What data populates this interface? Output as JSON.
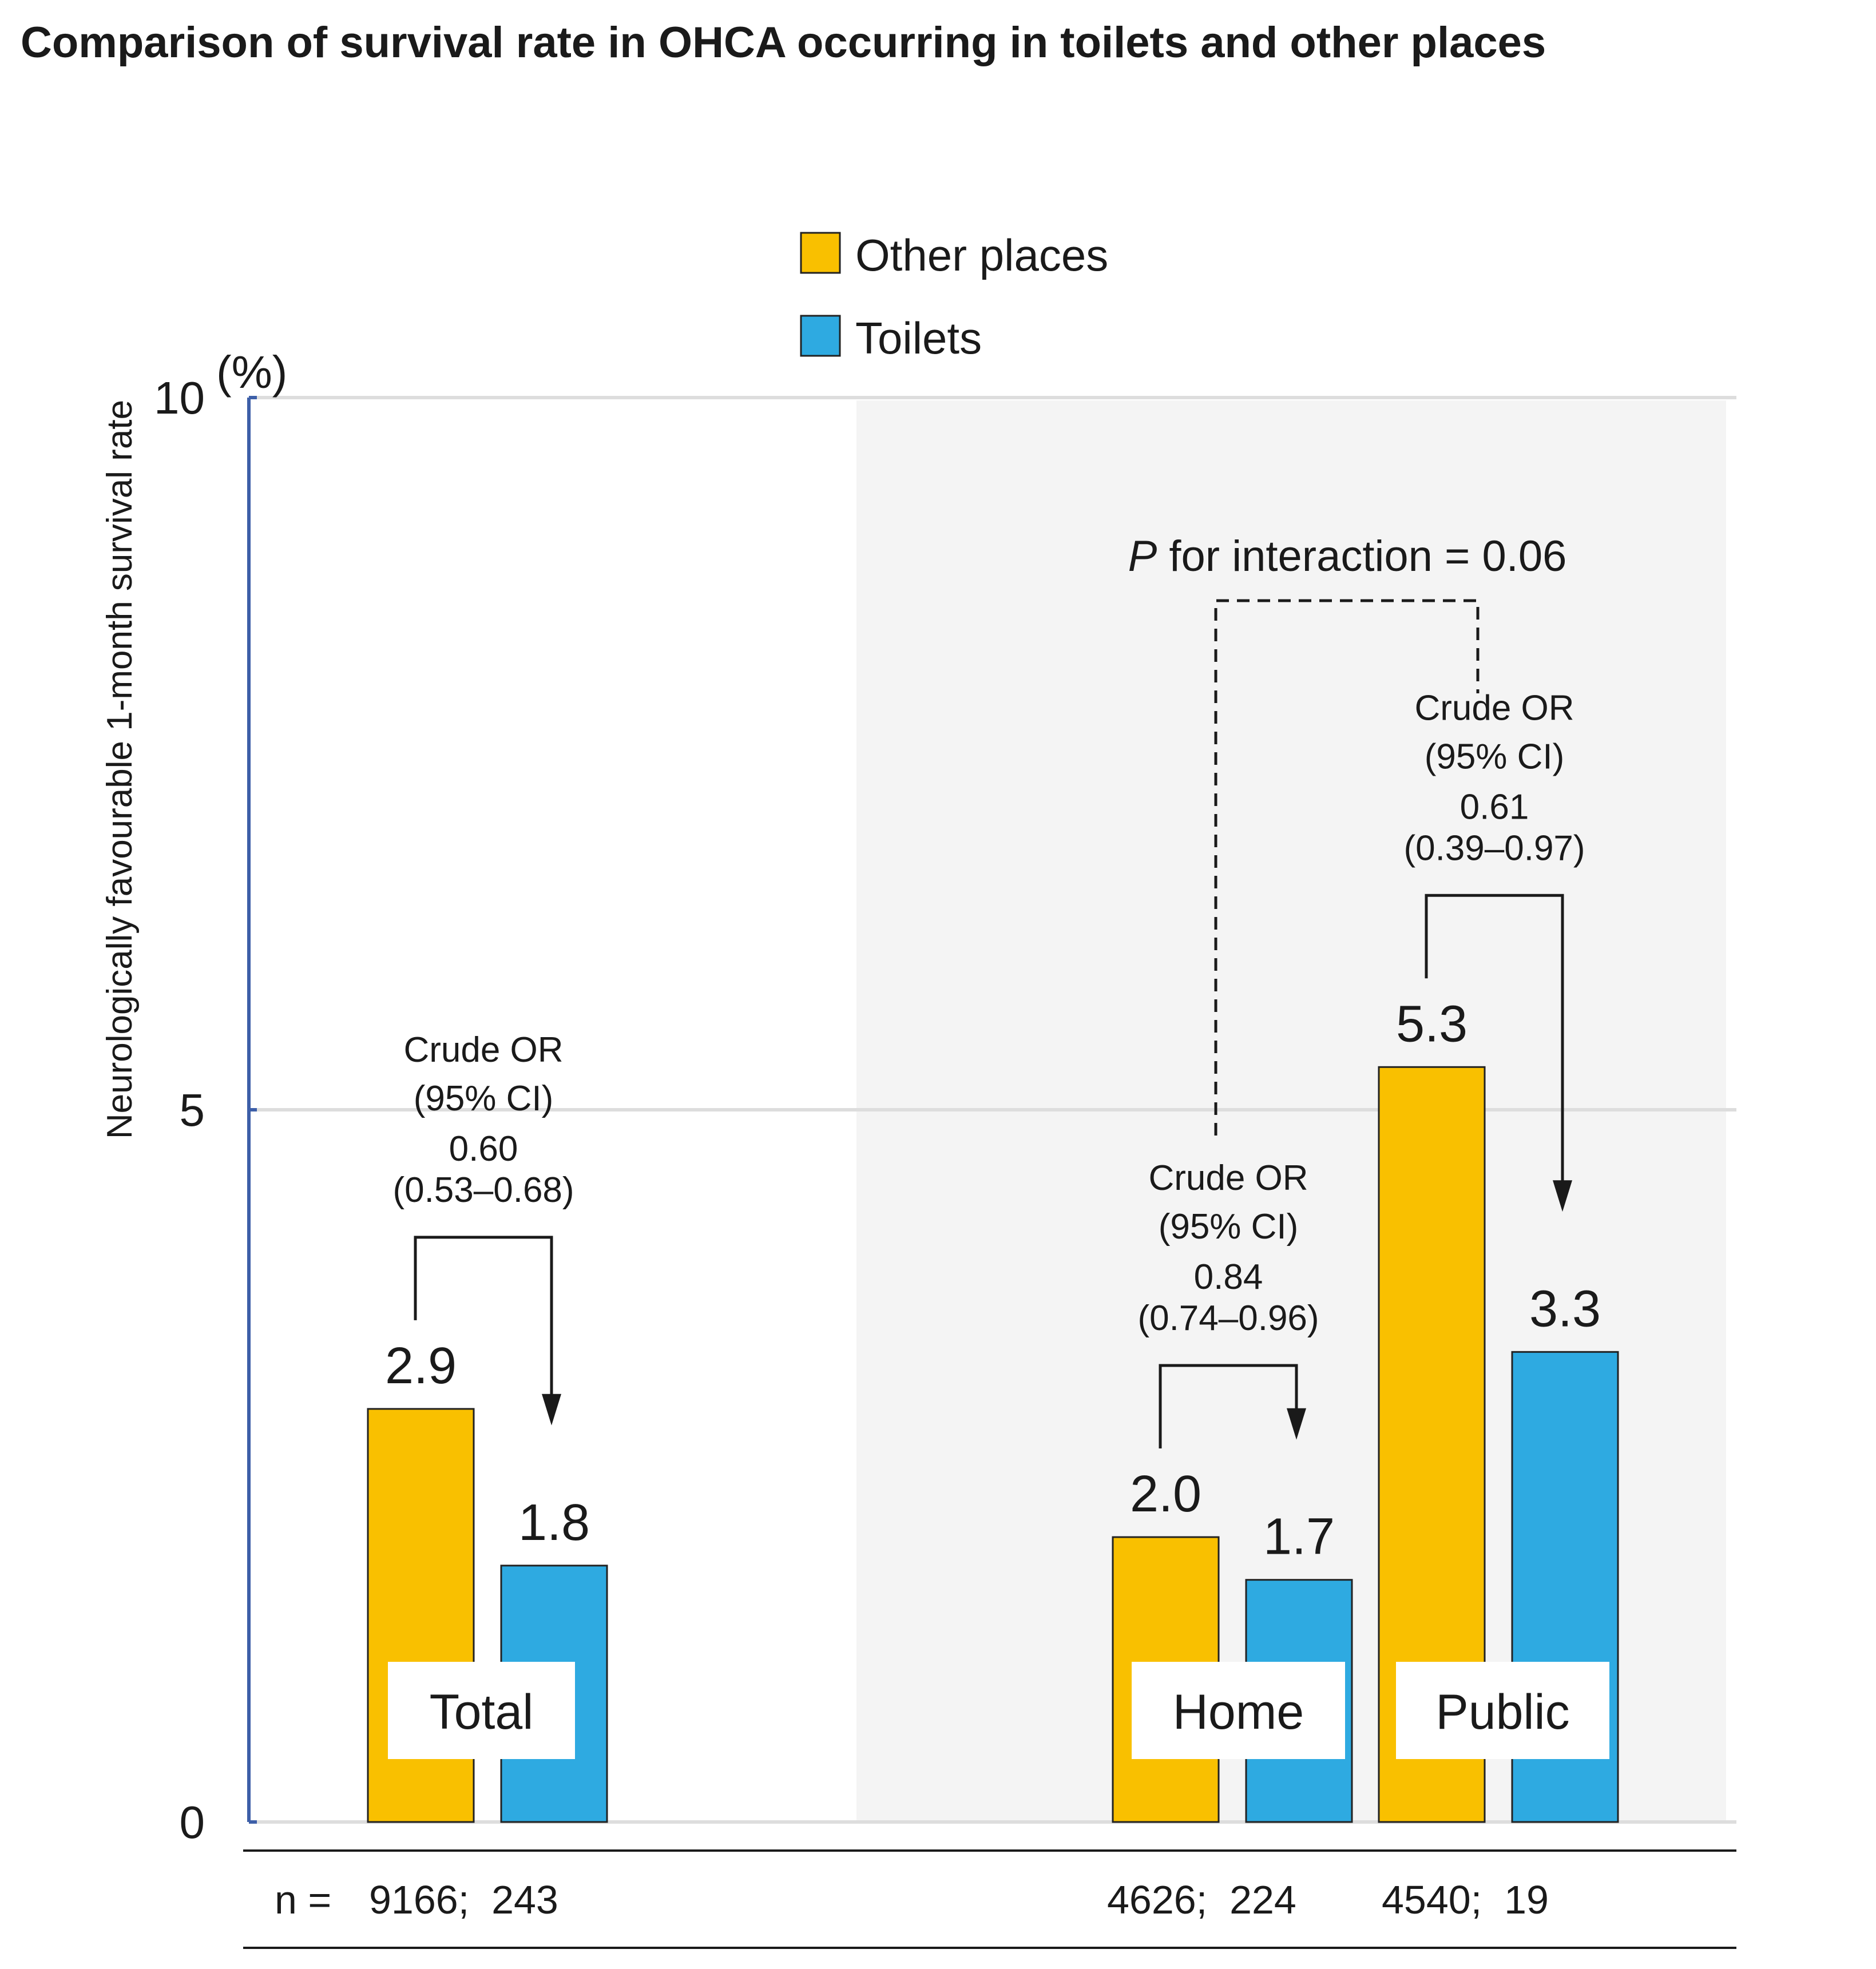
{
  "title": "Comparison of survival rate in OHCA occurring in toilets and other places",
  "colors": {
    "other_places": "#F9C000",
    "toilets": "#2EAAE1",
    "axis": "#3D5FA8",
    "shade": "#F4F4F4",
    "grid": "#DDDDDD"
  },
  "legend": [
    {
      "name": "Other places",
      "color": "#F9C000"
    },
    {
      "name": "Toilets",
      "color": "#2EAAE1"
    }
  ],
  "chart_data": {
    "type": "bar",
    "title": "Comparison of survival rate in OHCA occurring in toilets and other places",
    "ylabel": "Neurologically favourable 1-month  survival rate",
    "yunit": "(%)",
    "ylim": [
      0,
      10
    ],
    "yticks": [
      "0",
      "5",
      "10"
    ],
    "yticks_values": [
      0,
      5,
      10
    ],
    "categories": [
      "Total",
      "Home",
      "Public"
    ],
    "series": [
      {
        "name": "Other places",
        "values": [
          2.9,
          2.0,
          5.3
        ],
        "labels": [
          "2.9",
          "2.0",
          "5.3"
        ]
      },
      {
        "name": "Toilets",
        "values": [
          1.8,
          1.7,
          3.3
        ],
        "labels": [
          "1.8",
          "1.7",
          "3.3"
        ]
      }
    ],
    "n_prefix": "n =",
    "n_counts": [
      "9166;  243",
      "4626;  224",
      "4540;  19"
    ],
    "crude_or": [
      {
        "line1": "Crude OR",
        "line2": "(95% CI)",
        "value": "0.60",
        "ci": "(0.53–0.68)"
      },
      {
        "line1": "Crude OR",
        "line2": "(95% CI)",
        "value": "0.84",
        "ci": "(0.74–0.96)"
      },
      {
        "line1": "Crude OR",
        "line2": "(95% CI)",
        "value": "0.61",
        "ci": "(0.39–0.97)"
      }
    ],
    "interaction": {
      "p": "P",
      "rest": " for interaction = 0.06"
    },
    "grid": true,
    "legend_position": "top-center"
  }
}
